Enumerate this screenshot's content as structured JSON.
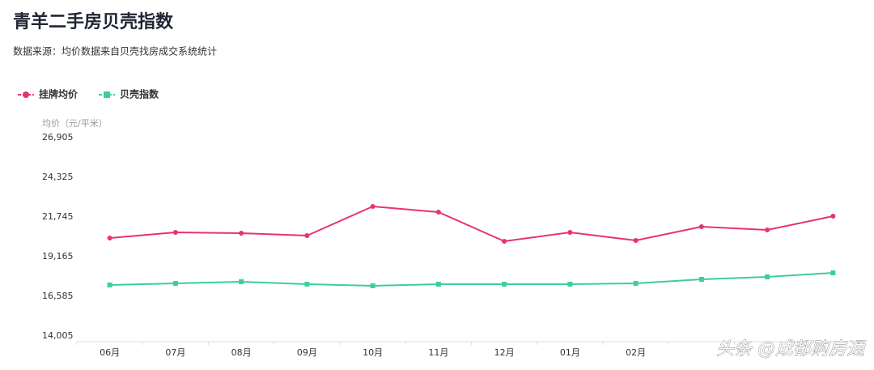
{
  "chart_data": {
    "type": "line",
    "title": "青羊二手房贝壳指数",
    "subtitle": "数据来源：均价数据来自贝壳找房成交系统统计",
    "y_axis_label": "均价（元/平米）",
    "categories": [
      "06月",
      "07月",
      "08月",
      "09月",
      "10月",
      "11月",
      "12月",
      "01月",
      "02月",
      null,
      null,
      null
    ],
    "series": [
      {
        "name": "挂牌均价",
        "color": "#e8336d",
        "marker": "circle",
        "values": [
          20376,
          20744,
          20692,
          20534,
          22429,
          22060,
          20165,
          20744,
          20218,
          21113,
          20902,
          21797
        ]
      },
      {
        "name": "贝壳指数",
        "color": "#3ccf9a",
        "marker": "square",
        "values": [
          17322,
          17427,
          17533,
          17375,
          17269,
          17375,
          17375,
          17375,
          17427,
          17691,
          17848,
          18112
        ]
      }
    ],
    "ylim": [
      14005,
      26905
    ],
    "yticks": [
      {
        "value": 14005,
        "label": "14,005"
      },
      {
        "value": 16585,
        "label": "16,585"
      },
      {
        "value": 19165,
        "label": "19,165"
      },
      {
        "value": 21745,
        "label": "21,745"
      },
      {
        "value": 24325,
        "label": "24,325"
      },
      {
        "value": 26905,
        "label": "26,905"
      }
    ],
    "legend_position": "top-left",
    "watermark": "头条 @成都购房通"
  }
}
